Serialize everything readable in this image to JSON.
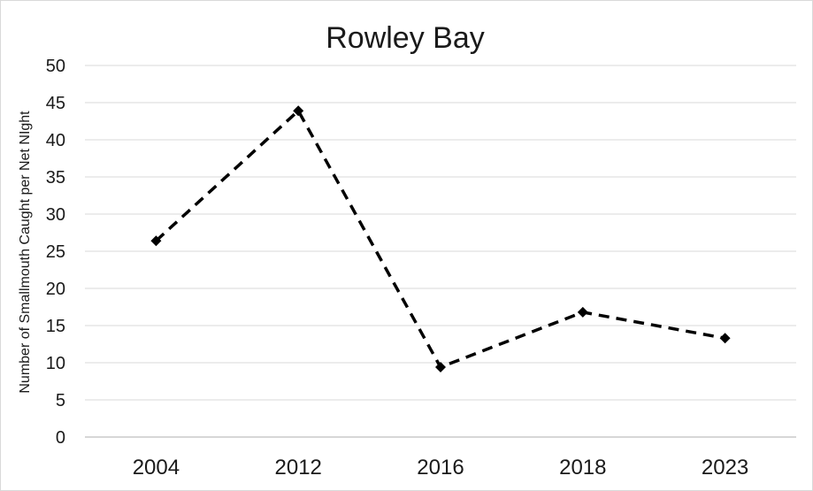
{
  "chart_data": {
    "type": "line",
    "title": "Rowley Bay",
    "xlabel": "",
    "ylabel": "Number of Smallmouth Caught per Net NIght",
    "categories": [
      "2004",
      "2012",
      "2016",
      "2018",
      "2023"
    ],
    "series": [
      {
        "values": [
          26.4,
          43.9,
          9.4,
          16.8,
          13.3
        ]
      }
    ],
    "ylim": [
      0,
      50
    ],
    "yticks": [
      0,
      5,
      10,
      15,
      20,
      25,
      30,
      35,
      40,
      45,
      50
    ],
    "grid": true,
    "legend": "none",
    "line_style": "dashed",
    "marker": "diamond",
    "colors": {
      "series": "#000000",
      "grid": "#d9d9d9"
    }
  }
}
